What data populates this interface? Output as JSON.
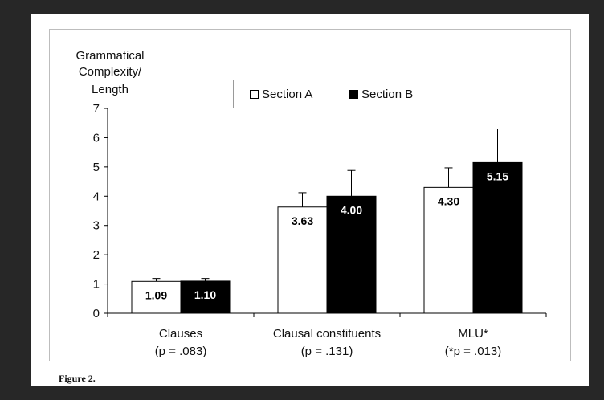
{
  "figure_caption": "Figure 2.",
  "chart_data": {
    "type": "bar",
    "ylabel_lines": [
      "Grammatical",
      "Complexity/",
      "Length"
    ],
    "ylim": [
      0,
      7
    ],
    "yticks": [
      "0",
      "1",
      "2",
      "3",
      "4",
      "5",
      "6",
      "7"
    ],
    "categories": [
      "Clauses",
      "Clausal constituents",
      "MLU*"
    ],
    "category_sublabels": [
      "(p = .083)",
      "(p = .131)",
      "(*p = .013)"
    ],
    "series": [
      {
        "name": "Section A",
        "color": "#ffffff",
        "values": [
          1.09,
          3.63,
          4.3
        ],
        "value_labels": [
          "1.09",
          "3.63",
          "4.30"
        ],
        "error_upper": [
          1.19,
          4.12,
          4.97
        ]
      },
      {
        "name": "Section B",
        "color": "#000000",
        "values": [
          1.1,
          4.0,
          5.15
        ],
        "value_labels": [
          "1.10",
          "4.00",
          "5.15"
        ],
        "error_upper": [
          1.19,
          4.88,
          6.3
        ]
      }
    ],
    "legend_position": "top-center",
    "grid": false
  }
}
